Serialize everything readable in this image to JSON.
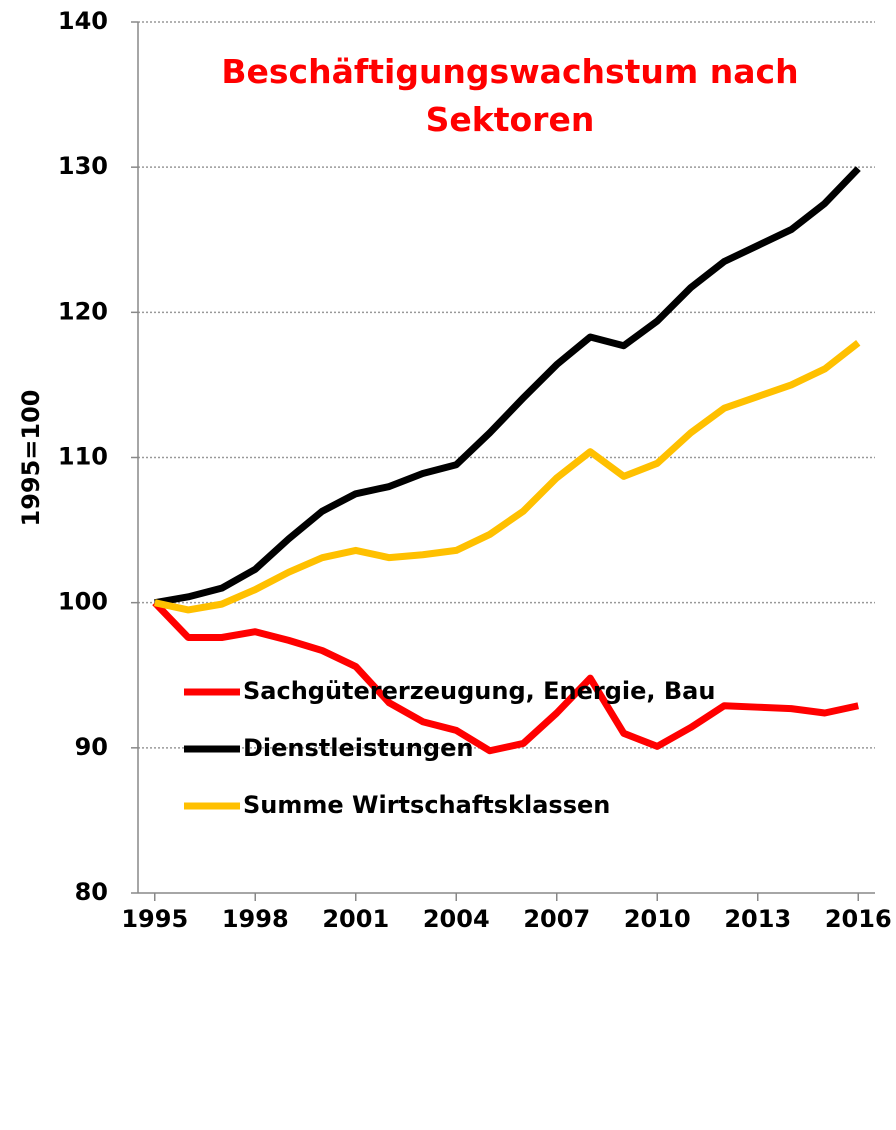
{
  "chart_data": {
    "type": "line",
    "title": "Beschäftigungswachstum nach Sektoren",
    "y_label": "1995=100",
    "x": [
      1995,
      1996,
      1997,
      1998,
      1999,
      2000,
      2001,
      2002,
      2003,
      2004,
      2005,
      2006,
      2007,
      2008,
      2009,
      2010,
      2011,
      2012,
      2013,
      2014,
      2015,
      2016
    ],
    "series": [
      {
        "name": "Sachgütererzeugung, Energie, Bau",
        "color": "#ff0000",
        "values": [
          100,
          97.6,
          97.6,
          98.0,
          97.4,
          96.7,
          95.6,
          93.1,
          91.8,
          91.2,
          89.8,
          90.3,
          92.4,
          94.8,
          91.0,
          90.1,
          91.4,
          92.9,
          92.8,
          92.7,
          92.4,
          92.9
        ]
      },
      {
        "name": "Dienstleistungen",
        "color": "#000000",
        "values": [
          100,
          100.4,
          101.0,
          102.3,
          104.4,
          106.3,
          107.5,
          108.0,
          108.9,
          109.5,
          111.7,
          114.1,
          116.4,
          118.3,
          117.7,
          119.4,
          121.7,
          123.5,
          124.6,
          125.7,
          127.5,
          129.9
        ]
      },
      {
        "name": "Summe Wirtschaftsklassen",
        "color": "#ffc000",
        "values": [
          100,
          99.5,
          99.9,
          100.9,
          102.1,
          103.1,
          103.6,
          103.1,
          103.3,
          103.6,
          104.7,
          106.3,
          108.6,
          110.4,
          108.7,
          109.6,
          111.7,
          113.4,
          114.2,
          115.0,
          116.1,
          117.9
        ]
      }
    ],
    "xlim": [
      1994.5,
      2016.5
    ],
    "xticks": [
      1995,
      1998,
      2001,
      2004,
      2007,
      2010,
      2013,
      2016
    ],
    "ylim": [
      80,
      140
    ],
    "yticks": [
      80,
      90,
      100,
      110,
      120,
      130,
      140
    ],
    "grid": true
  }
}
